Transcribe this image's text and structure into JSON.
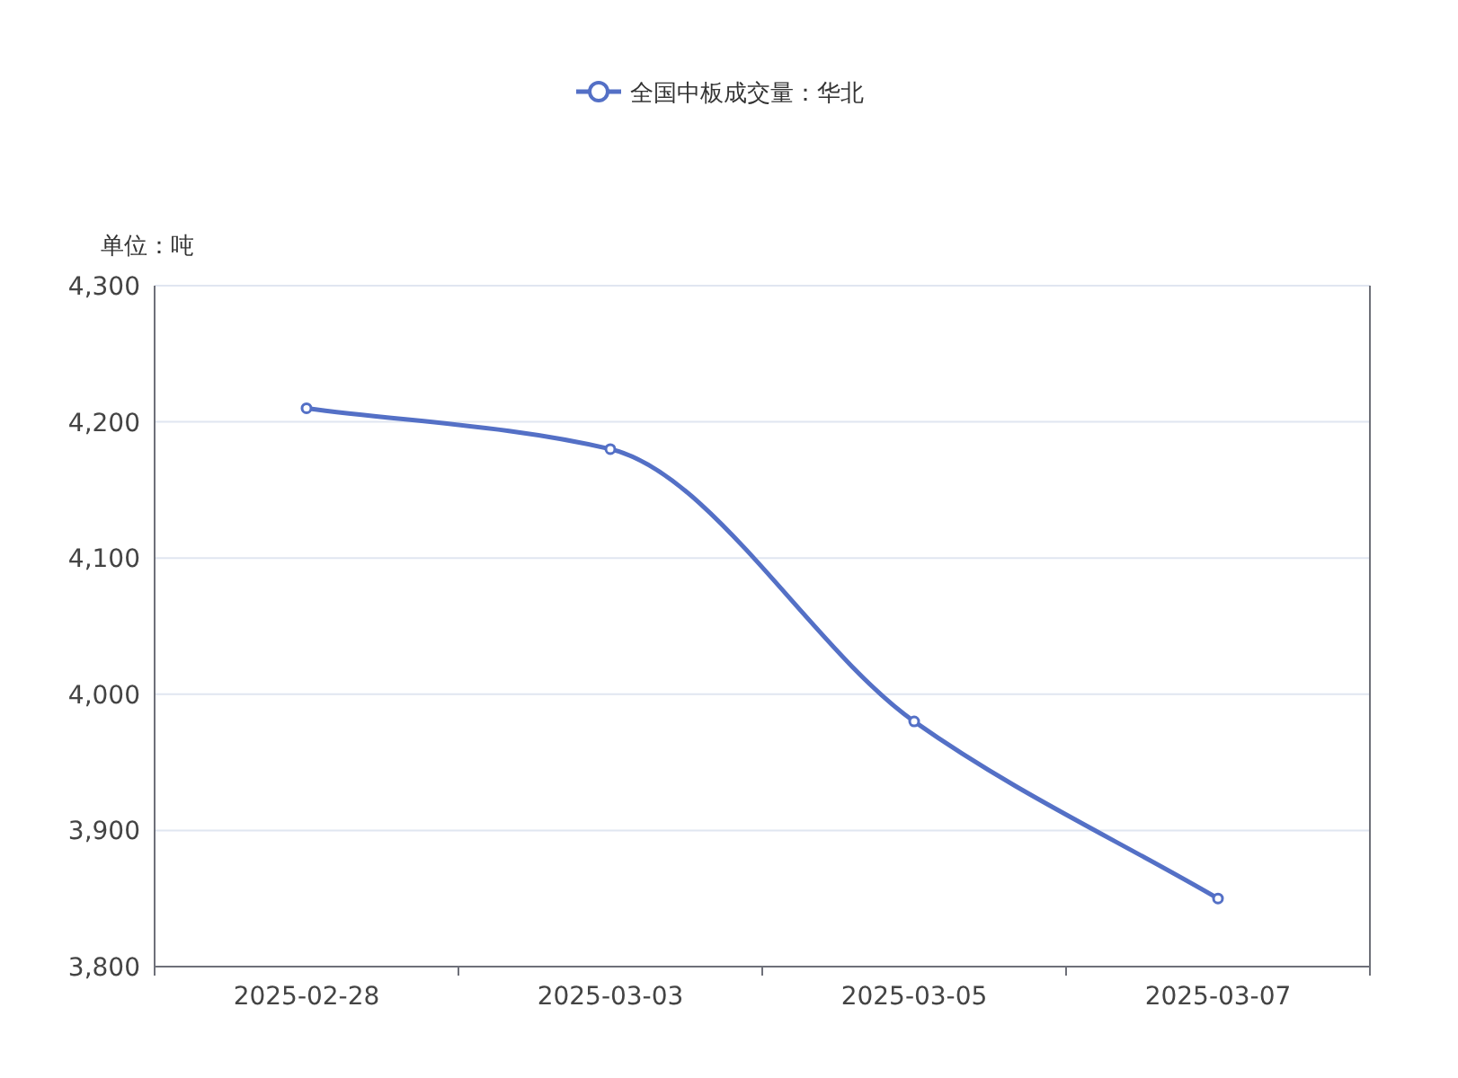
{
  "chart_data": {
    "type": "line",
    "ylabel": "单位：吨",
    "categories": [
      "2025-02-28",
      "2025-03-03",
      "2025-03-05",
      "2025-03-07"
    ],
    "series": [
      {
        "name": "全国中板成交量：华北",
        "color": "#5470c6",
        "values": [
          4210,
          4180,
          3980,
          3850
        ]
      }
    ],
    "ylim": [
      3800,
      4300
    ],
    "yticks": [
      {
        "value": 3800,
        "label": "3,800"
      },
      {
        "value": 3900,
        "label": "3,900"
      },
      {
        "value": 4000,
        "label": "4,000"
      },
      {
        "value": 4100,
        "label": "4,100"
      },
      {
        "value": 4200,
        "label": "4,200"
      },
      {
        "value": 4300,
        "label": "4,300"
      }
    ],
    "grid": "y",
    "legend": "top",
    "marker": "circle",
    "line_style": "solid"
  }
}
